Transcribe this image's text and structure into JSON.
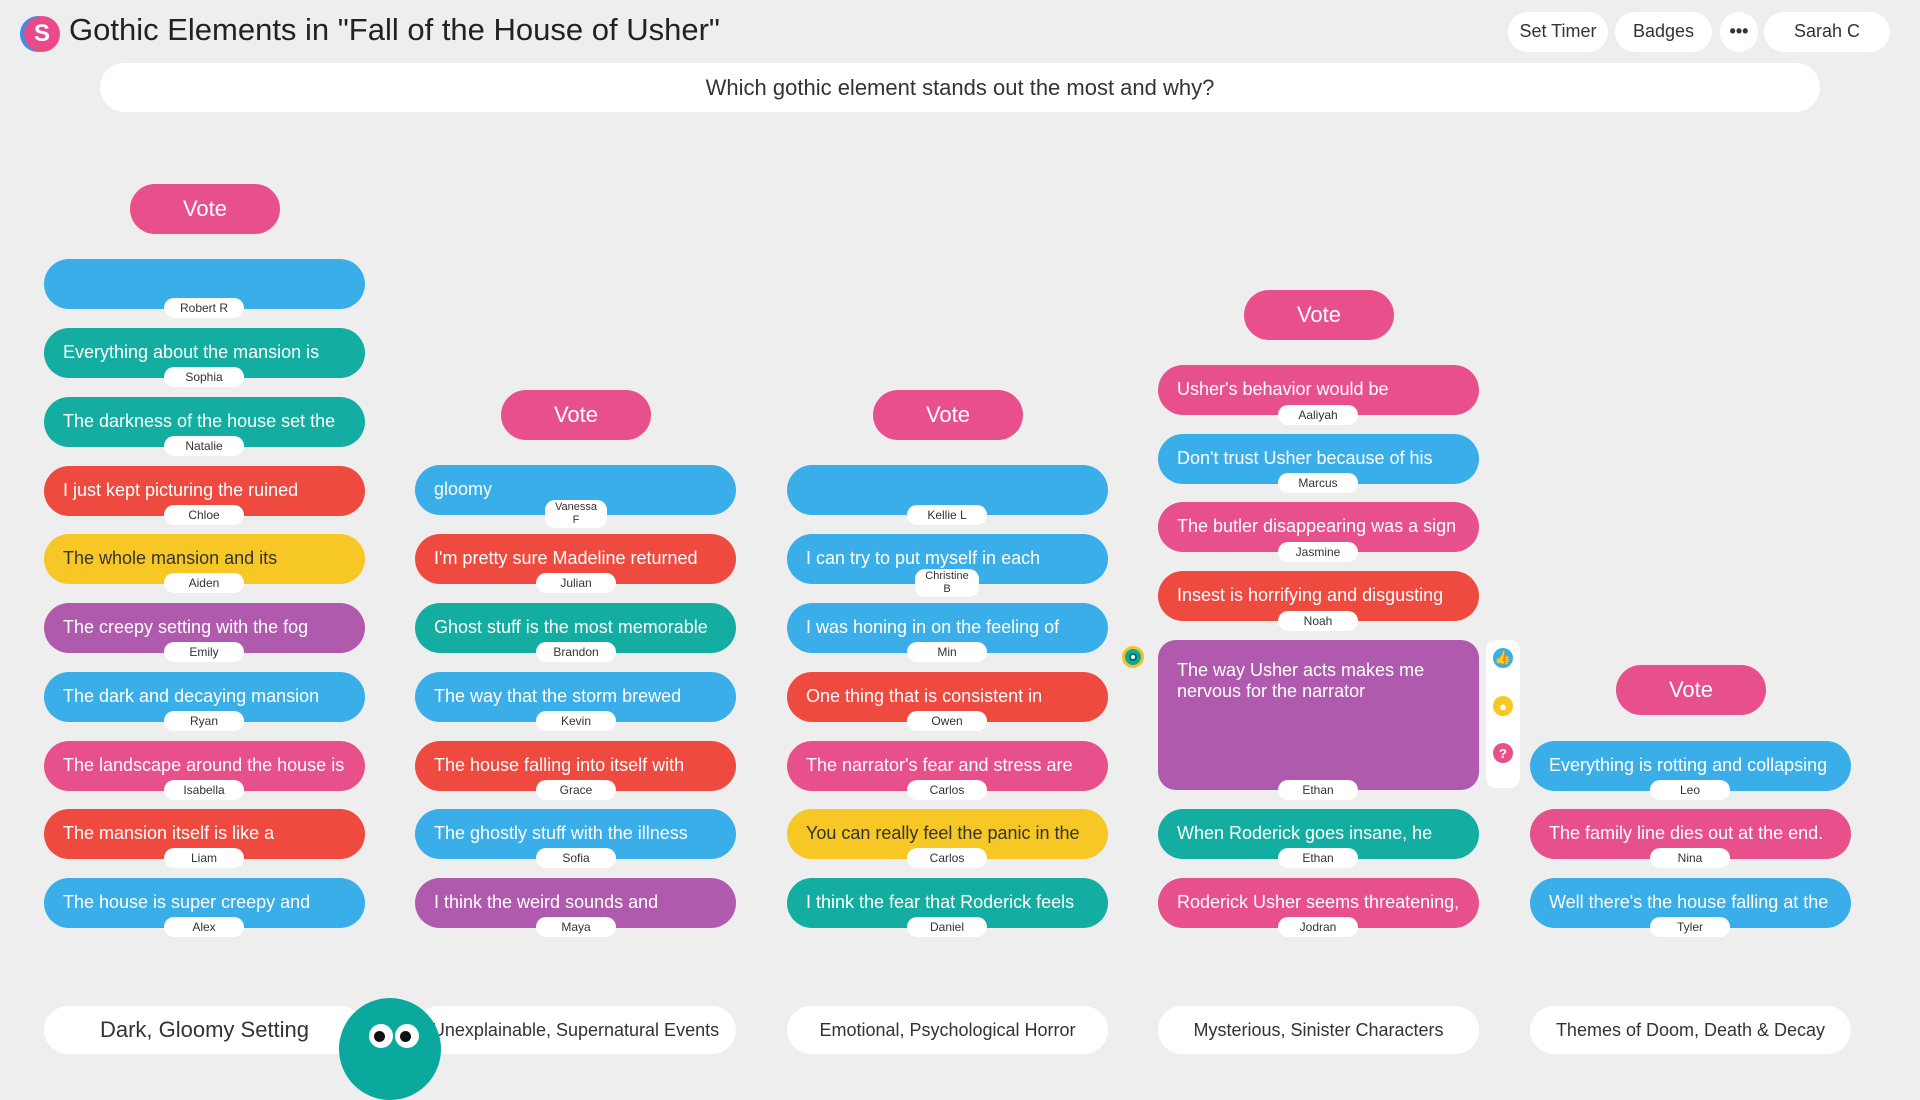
{
  "app": {
    "logo": "S",
    "title": "Gothic Elements in \"Fall of the House of Usher\""
  },
  "header": {
    "set_timer": "Set Timer",
    "badges": "Badges",
    "more": "•••",
    "user": "Sarah C"
  },
  "question": "Which gothic element stands out the most and why?",
  "vote_label": "Vote",
  "colors": {
    "blue": "#3aaee8",
    "teal": "#14ada1",
    "red": "#ee4a3f",
    "yellow": "#f7c726",
    "purple": "#b05aad",
    "pink": "#e8508b"
  },
  "columns": [
    {
      "label": "Dark, Gloomy Setting",
      "cards": [
        {
          "text": "",
          "author": "Robert R",
          "color": "blue"
        },
        {
          "text": "Everything about the mansion is",
          "author": "Sophia",
          "color": "teal"
        },
        {
          "text": "The darkness of the house set the",
          "author": "Natalie",
          "color": "teal"
        },
        {
          "text": "I just kept picturing the ruined",
          "author": "Chloe",
          "color": "red"
        },
        {
          "text": "The whole mansion and its",
          "author": "Aiden",
          "color": "yellow"
        },
        {
          "text": "The creepy setting with the fog",
          "author": "Emily",
          "color": "purple"
        },
        {
          "text": "The dark and decaying mansion",
          "author": "Ryan",
          "color": "blue"
        },
        {
          "text": "The landscape around the house is",
          "author": "Isabella",
          "color": "pink"
        },
        {
          "text": "The mansion itself is like a",
          "author": "Liam",
          "color": "red"
        },
        {
          "text": "The house is super creepy and",
          "author": "Alex",
          "color": "blue"
        }
      ]
    },
    {
      "label": "Unexplainable, Supernatural Events",
      "cards": [
        {
          "text": "gloomy",
          "author": "Vanessa F",
          "color": "blue"
        },
        {
          "text": "I'm pretty sure Madeline returned",
          "author": "Julian",
          "color": "red"
        },
        {
          "text": "Ghost stuff is the most memorable",
          "author": "Brandon",
          "color": "teal"
        },
        {
          "text": "The way that the storm brewed",
          "author": "Kevin",
          "color": "blue"
        },
        {
          "text": "The house falling into itself with",
          "author": "Grace",
          "color": "red"
        },
        {
          "text": "The ghostly stuff with the illness",
          "author": "Sofia",
          "color": "blue"
        },
        {
          "text": "I think the weird sounds and",
          "author": "Maya",
          "color": "purple"
        }
      ]
    },
    {
      "label": "Emotional, Psychological Horror",
      "cards": [
        {
          "text": "",
          "author": "Kellie L",
          "color": "blue"
        },
        {
          "text": "I can try to put myself in each",
          "author": "Christine B",
          "color": "blue"
        },
        {
          "text": "I was honing in on the feeling of",
          "author": "Min",
          "color": "blue"
        },
        {
          "text": "One thing that is consistent in",
          "author": "Owen",
          "color": "red"
        },
        {
          "text": "The narrator's fear and stress are",
          "author": "Carlos",
          "color": "pink"
        },
        {
          "text": "You can really feel the panic in the",
          "author": "Carlos",
          "color": "yellow"
        },
        {
          "text": "I think the fear that Roderick feels",
          "author": "Daniel",
          "color": "teal"
        }
      ]
    },
    {
      "label": "Mysterious, Sinister Characters",
      "cards": [
        {
          "text": "Usher's behavior would be",
          "author": "Aaliyah",
          "color": "pink"
        },
        {
          "text": "Don't trust Usher because of his",
          "author": "Marcus",
          "color": "blue"
        },
        {
          "text": "The butler disappearing was a sign",
          "author": "Jasmine",
          "color": "pink"
        },
        {
          "text": "Insest is horrifying and disgusting",
          "author": "Noah",
          "color": "red"
        },
        {
          "text": "The way Usher acts makes me nervous for the narrator",
          "author": "Ethan",
          "color": "purple",
          "expanded": true
        },
        {
          "text": "When Roderick goes insane, he",
          "author": "Ethan",
          "color": "teal"
        },
        {
          "text": "Roderick Usher seems threatening,",
          "author": "Jodran",
          "color": "pink"
        }
      ]
    },
    {
      "label": "Themes of Doom, Death & Decay",
      "cards": [
        {
          "text": "Everything is rotting and collapsing",
          "author": "Leo",
          "color": "blue"
        },
        {
          "text": "The family line dies out at the end.",
          "author": "Nina",
          "color": "pink"
        },
        {
          "text": "Well there's the house falling at the",
          "author": "Tyler",
          "color": "blue"
        }
      ]
    }
  ],
  "card_tools": {
    "like": "like-icon",
    "idea": "lightbulb-icon",
    "question": "?"
  }
}
